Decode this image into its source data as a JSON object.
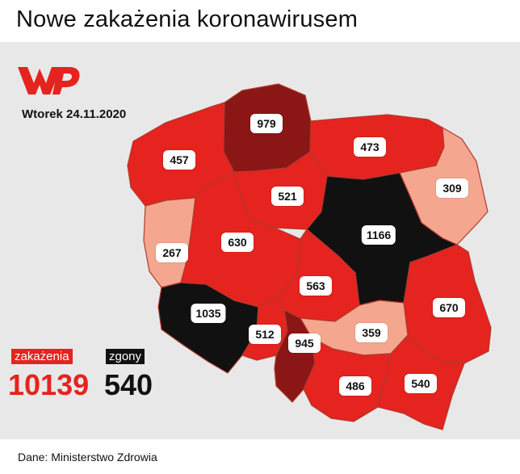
{
  "header": {
    "title": "Nowe zakażenia koronawirusem"
  },
  "brand": {
    "logo_text": "WP"
  },
  "date": "Wtorek 24.11.2020",
  "legend": {
    "infections_label": "zakażenia",
    "infections_value": "10139",
    "deaths_label": "zgony",
    "deaths_value": "540"
  },
  "source": "Dane: Ministerstwo Zdrowia",
  "colors": {
    "red": "#e5231f",
    "dark_red": "#8b1616",
    "light": "#f4a78e",
    "black": "#111111",
    "panel": "#e8e8e8"
  },
  "regions": [
    {
      "id": "zachodniopomorskie",
      "value": "457",
      "shade": "red"
    },
    {
      "id": "pomorskie",
      "value": "979",
      "shade": "dark_red"
    },
    {
      "id": "warminsko-mazurskie",
      "value": "473",
      "shade": "red"
    },
    {
      "id": "podlaskie",
      "value": "309",
      "shade": "light"
    },
    {
      "id": "kujawsko-pomorskie",
      "value": "521",
      "shade": "red"
    },
    {
      "id": "lubuskie",
      "value": "267",
      "shade": "light"
    },
    {
      "id": "wielkopolskie",
      "value": "630",
      "shade": "red"
    },
    {
      "id": "mazowieckie",
      "value": "1166",
      "shade": "black"
    },
    {
      "id": "lodzkie",
      "value": "563",
      "shade": "red"
    },
    {
      "id": "lubelskie",
      "value": "670",
      "shade": "red"
    },
    {
      "id": "dolnoslaskie",
      "value": "1035",
      "shade": "black"
    },
    {
      "id": "opolskie",
      "value": "512",
      "shade": "red"
    },
    {
      "id": "slaskie",
      "value": "945",
      "shade": "dark_red"
    },
    {
      "id": "swietokrzyskie",
      "value": "359",
      "shade": "light"
    },
    {
      "id": "malopolskie",
      "value": "486",
      "shade": "red"
    },
    {
      "id": "podkarpackie",
      "value": "540",
      "shade": "red"
    }
  ]
}
